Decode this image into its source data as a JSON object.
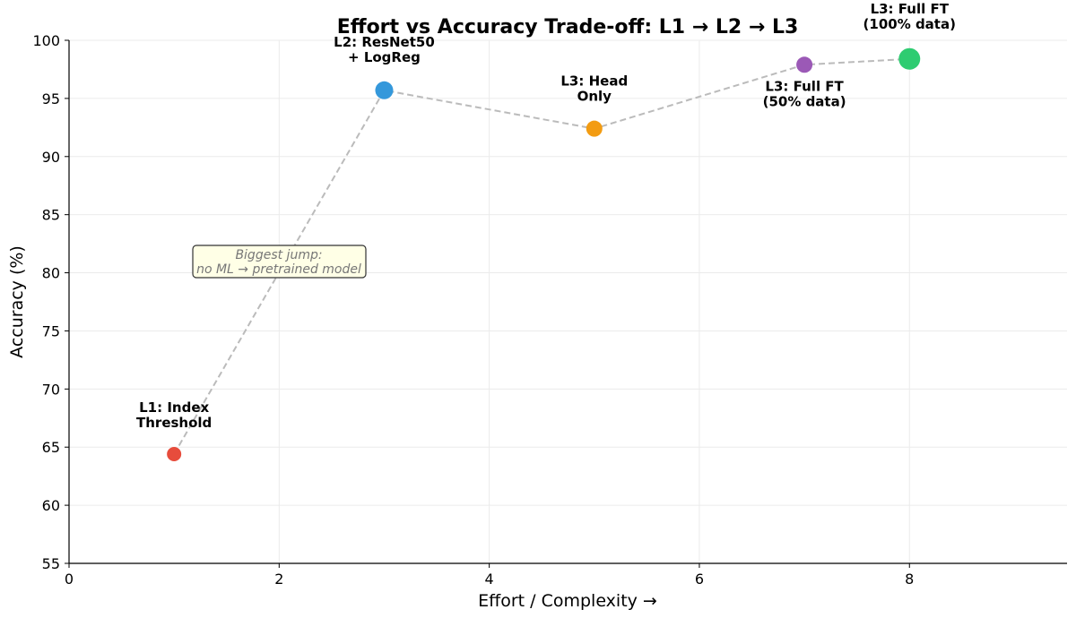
{
  "chart_data": {
    "type": "scatter",
    "title": "Effort vs Accuracy Trade-off: L1 → L2 → L3",
    "xlabel": "Effort / Complexity →",
    "ylabel": "Accuracy (%)",
    "xlim": [
      0,
      9.5
    ],
    "ylim": [
      55,
      100
    ],
    "xticks": [
      0,
      2,
      4,
      6,
      8
    ],
    "yticks": [
      55,
      60,
      65,
      70,
      75,
      80,
      85,
      90,
      95,
      100
    ],
    "grid": true,
    "connector": "dashed gray line",
    "points": [
      {
        "label": [
          "L1: Index",
          "Threshold"
        ],
        "x": 1,
        "y": 64.4,
        "color": "#e74c3c",
        "size": "small"
      },
      {
        "label": [
          "L2: ResNet50",
          "+ LogReg"
        ],
        "x": 3,
        "y": 95.7,
        "color": "#3498db",
        "size": "large"
      },
      {
        "label": [
          "L3: Head",
          "Only"
        ],
        "x": 5,
        "y": 92.4,
        "color": "#f39c12",
        "size": "medium"
      },
      {
        "label": [
          "L3: Full FT",
          "(50% data)"
        ],
        "x": 7,
        "y": 97.9,
        "color": "#9b59b6",
        "size": "medium"
      },
      {
        "label": [
          "L3: Full FT",
          "(100% data)"
        ],
        "x": 8,
        "y": 98.4,
        "color": "#2ecc71",
        "size": "largest"
      }
    ],
    "annotation": {
      "text": [
        "Biggest jump:",
        "no ML → pretrained model"
      ],
      "x": 2,
      "y": 81
    }
  }
}
